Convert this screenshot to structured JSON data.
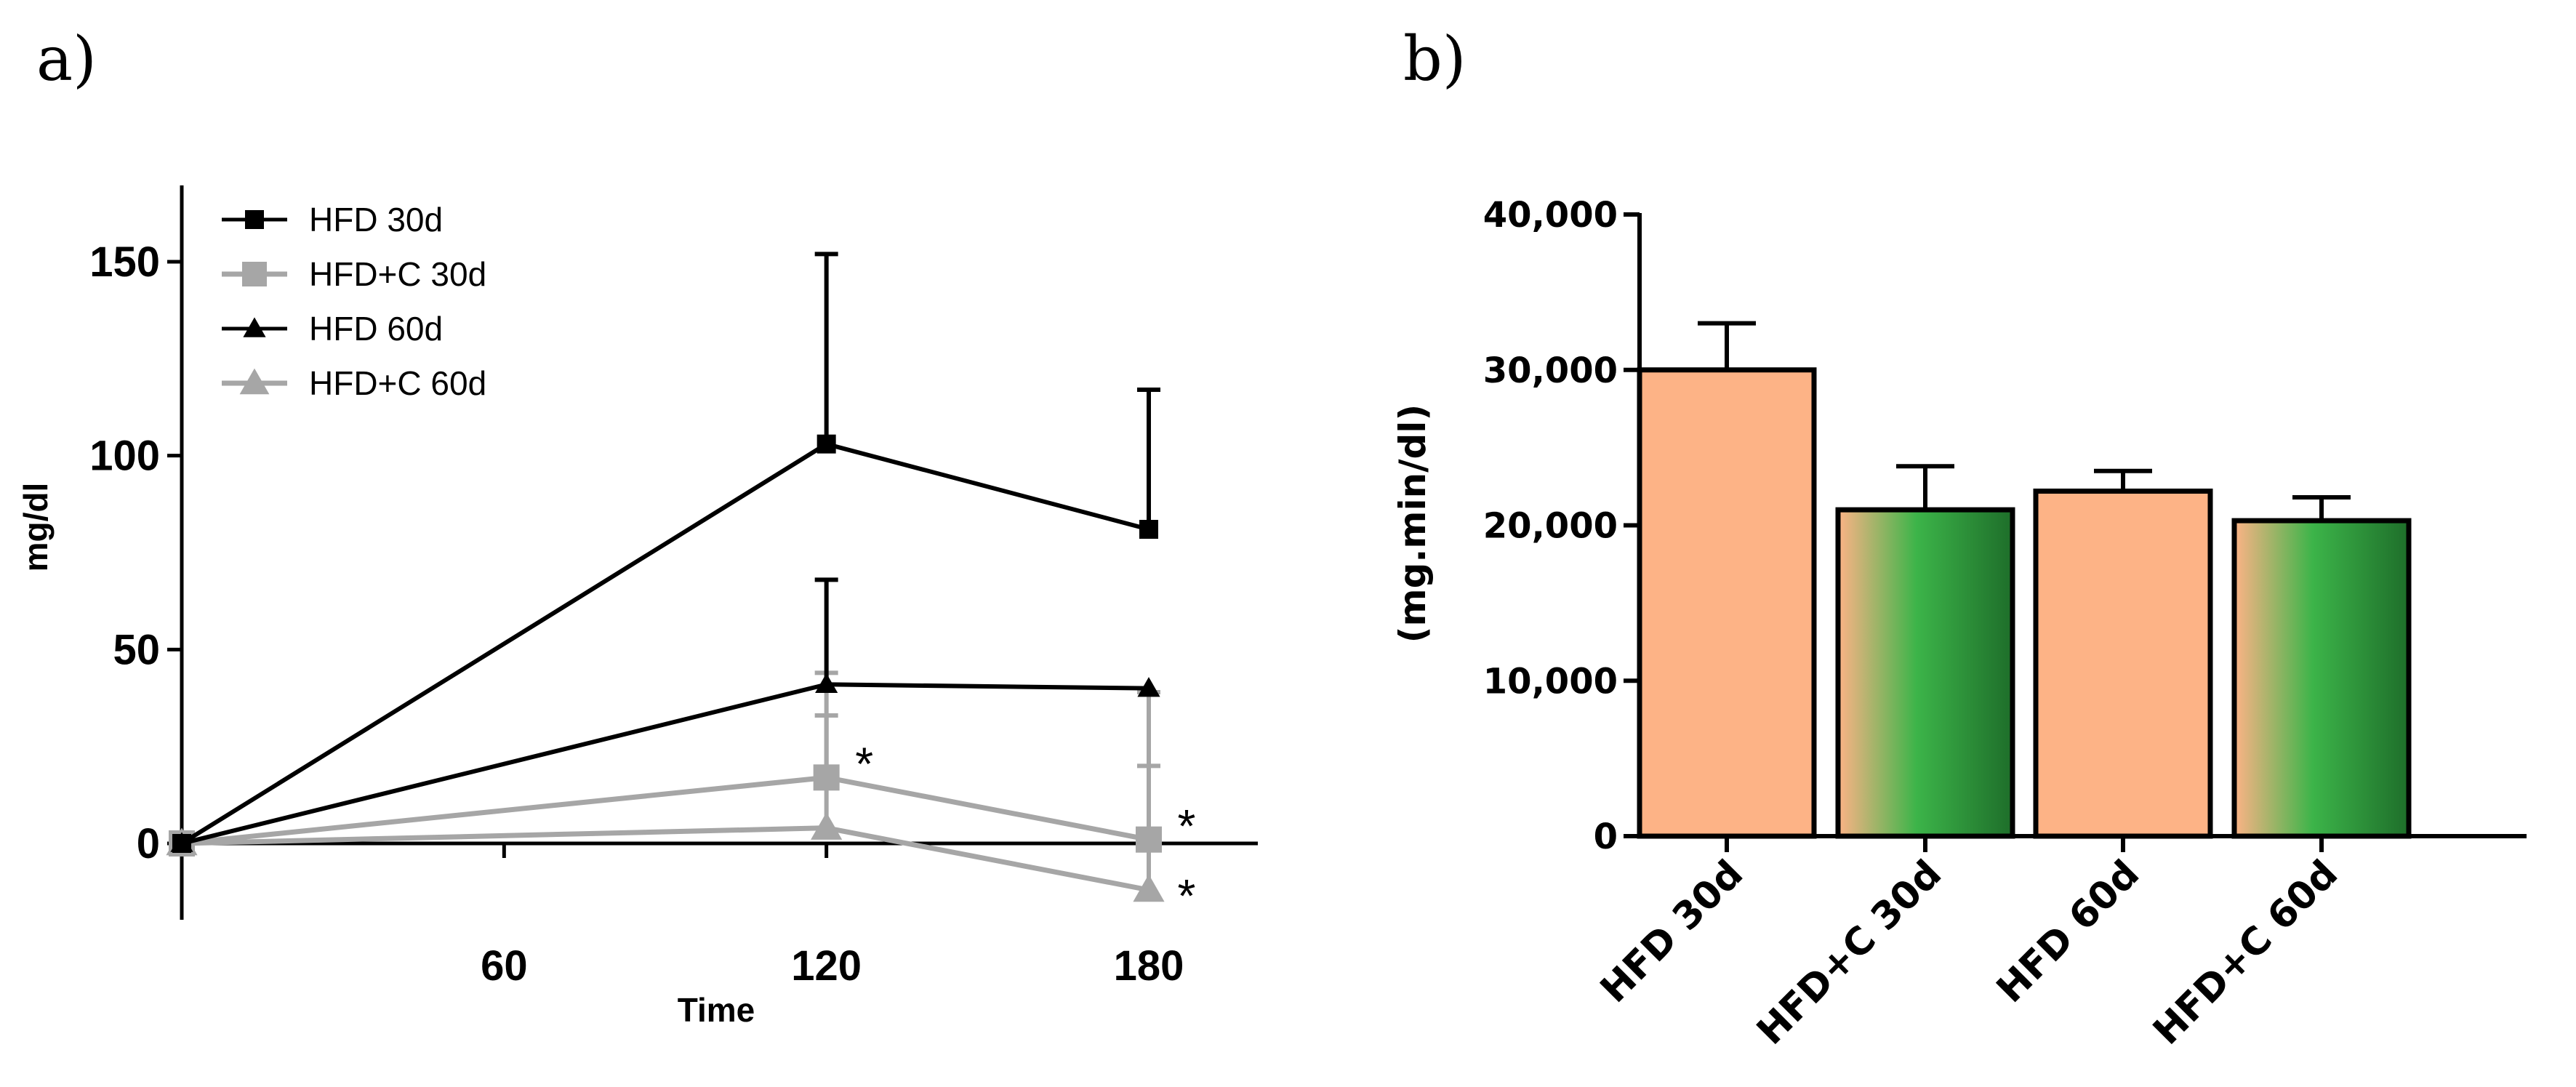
{
  "panels": {
    "a_label": "a)",
    "b_label": "b)"
  },
  "chart_data": [
    {
      "type": "line",
      "panel": "a",
      "xlabel": "Time",
      "ylabel": "mg/dl",
      "x": [
        0,
        120,
        180
      ],
      "xticks": [
        60,
        120,
        180
      ],
      "xlim": [
        0,
        200
      ],
      "yticks": [
        0,
        50,
        100,
        150
      ],
      "ylim": [
        -20,
        170
      ],
      "grid": false,
      "legend_position": "top-left",
      "series": [
        {
          "name": "HFD 30d",
          "values": [
            0,
            103,
            81
          ],
          "error": [
            0,
            49,
            36
          ],
          "color": "#000000",
          "marker": "square"
        },
        {
          "name": "HFD+C 30d",
          "values": [
            0,
            17,
            1
          ],
          "error": [
            0,
            16,
            19
          ],
          "color": "#a6a6a6",
          "marker": "square"
        },
        {
          "name": "HFD 60d",
          "values": [
            0,
            41,
            40
          ],
          "error": [
            0,
            27,
            0
          ],
          "color": "#000000",
          "marker": "triangle"
        },
        {
          "name": "HFD+C 60d",
          "values": [
            0,
            4,
            -12
          ],
          "error": [
            0,
            40,
            51
          ],
          "color": "#a6a6a6",
          "marker": "triangle"
        }
      ],
      "annotations": [
        {
          "text": "*",
          "x": 120,
          "y": 22
        },
        {
          "text": "*",
          "x": 180,
          "y": 6
        },
        {
          "text": "*",
          "x": 180,
          "y": -12
        }
      ]
    },
    {
      "type": "bar",
      "panel": "b",
      "ylabel": "(mg.min/dl)",
      "categories": [
        "HFD 30d",
        "HFD+C 30d",
        "HFD 60d",
        "HFD+C 60d"
      ],
      "values": [
        30000,
        21000,
        22200,
        20300
      ],
      "error": [
        3000,
        2800,
        1300,
        1500
      ],
      "ytick_values": [
        0,
        10000,
        20000,
        30000,
        40000
      ],
      "ytick_labels": [
        "0",
        "10,000",
        "20,000",
        "30,000",
        "40,000"
      ],
      "ylim": [
        0,
        40000
      ],
      "grid": false,
      "fill_styles": [
        "salmon",
        "salmon-to-green",
        "salmon",
        "salmon-to-green"
      ]
    }
  ],
  "colors": {
    "salmon": "#fdb386",
    "green_mid": "#3cb449",
    "green_dark": "#1e6e2a",
    "gray": "#a6a6a6"
  }
}
